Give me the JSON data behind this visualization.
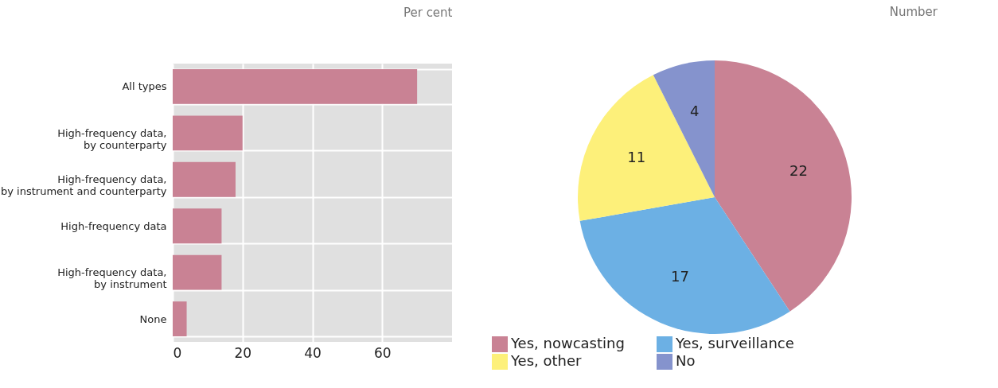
{
  "chart_data": [
    {
      "type": "bar",
      "orientation": "horizontal",
      "xlabel": "Per cent",
      "categories": [
        "All types",
        "High-frequency data, by counterparty",
        "High-frequency data, by instrument and counterparty",
        "High-frequency data",
        "High-frequency data, by instrument",
        "None"
      ],
      "values": [
        70,
        20,
        18,
        14,
        14,
        4
      ],
      "color": "#c98294",
      "xlim": [
        0,
        80
      ],
      "xticks": [
        0,
        20,
        40,
        60
      ],
      "grid": true
    },
    {
      "type": "pie",
      "title": "Number",
      "categories": [
        "Yes, nowcasting",
        "Yes, surveillance",
        "Yes, other",
        "No"
      ],
      "values": [
        22,
        17,
        11,
        4
      ],
      "colors": [
        "#c98294",
        "#6cb0e4",
        "#fdf07a",
        "#8593cd"
      ],
      "data_labels": true,
      "legend": "bottom"
    }
  ]
}
